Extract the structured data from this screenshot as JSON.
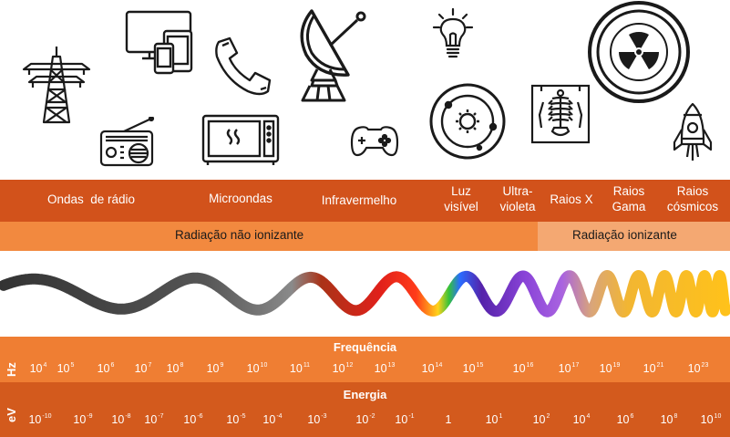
{
  "icons": [
    "power-tower-icon",
    "radio-icon",
    "devices-icon",
    "phone-icon",
    "microwave-icon",
    "satellite-dish-icon",
    "gamepad-icon",
    "lightbulb-icon",
    "sun-orbit-icon",
    "xray-icon",
    "radiation-icon",
    "rocket-icon"
  ],
  "categories": [
    "Ondas  de rádio",
    "Microondas",
    "Infravermelho",
    "Luz\nvisível",
    "Ultra-\nvioleta",
    "Raios X",
    "Raios\nGama",
    "Raios\ncósmicos"
  ],
  "radiation": {
    "non_ionizing": "Radiação não ionizante",
    "ionizing": "Radiação ionizante"
  },
  "frequency": {
    "title": "Frequência",
    "unit": "Hz",
    "ticks": [
      {
        "base": "10",
        "exp": "4"
      },
      {
        "base": "10",
        "exp": "5"
      },
      {
        "base": "10",
        "exp": "6"
      },
      {
        "base": "10",
        "exp": "7"
      },
      {
        "base": "10",
        "exp": "8"
      },
      {
        "base": "10",
        "exp": "9"
      },
      {
        "base": "10",
        "exp": "10"
      },
      {
        "base": "10",
        "exp": "11"
      },
      {
        "base": "10",
        "exp": "12"
      },
      {
        "base": "10",
        "exp": "13"
      },
      {
        "base": "10",
        "exp": "14"
      },
      {
        "base": "10",
        "exp": "15"
      },
      {
        "base": "10",
        "exp": "16"
      },
      {
        "base": "10",
        "exp": "17"
      },
      {
        "base": "10",
        "exp": "19"
      },
      {
        "base": "10",
        "exp": "21"
      },
      {
        "base": "10",
        "exp": "23"
      }
    ]
  },
  "energy": {
    "title": "Energia",
    "unit": "eV",
    "ticks": [
      {
        "base": "10",
        "exp": "-10"
      },
      {
        "base": "10",
        "exp": "-9"
      },
      {
        "base": "10",
        "exp": "-8"
      },
      {
        "base": "10",
        "exp": "-7"
      },
      {
        "base": "10",
        "exp": "-6"
      },
      {
        "base": "10",
        "exp": "-5"
      },
      {
        "base": "10",
        "exp": "-4"
      },
      {
        "base": "10",
        "exp": "-3"
      },
      {
        "base": "10",
        "exp": "-2"
      },
      {
        "base": "10",
        "exp": "-1"
      },
      {
        "base": "1",
        "exp": ""
      },
      {
        "base": "10",
        "exp": "1"
      },
      {
        "base": "10",
        "exp": "2"
      },
      {
        "base": "10",
        "exp": "4"
      },
      {
        "base": "10",
        "exp": "6"
      },
      {
        "base": "10",
        "exp": "8"
      },
      {
        "base": "10",
        "exp": "10"
      }
    ]
  },
  "colors": {
    "dark_band": "#d2521b",
    "light_band": "#f2893f",
    "ionizing_band": "#f4a872",
    "wave_start": "#333333",
    "wave_end": "#ffc21a"
  }
}
